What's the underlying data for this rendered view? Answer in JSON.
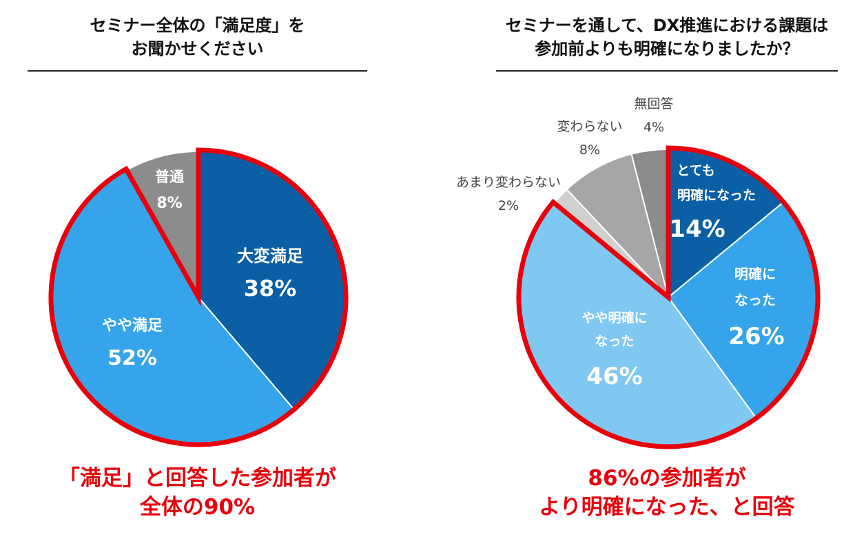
{
  "colors": {
    "very_dark_blue": "#0b5fa5",
    "mid_blue": "#35a4ea",
    "light_blue": "#7fc8f2",
    "gray_dark": "#8c8c8c",
    "gray_mid": "#a6a6a6",
    "gray_light": "#d0d0d0",
    "highlight_red": "#e8000b"
  },
  "chart_data": [
    {
      "type": "pie",
      "title": [
        "セミナー全体の「満足度」を",
        "お聞かせください"
      ],
      "categories": [
        "大変満足",
        "やや満足",
        "普通"
      ],
      "values": [
        38,
        52,
        8
      ],
      "value_labels": [
        "38%",
        "52%",
        "8%"
      ],
      "highlighted": [
        "大変満足",
        "やや満足"
      ],
      "conclusion": [
        "「満足」と回答した参加者が",
        "全体の90%"
      ]
    },
    {
      "type": "pie",
      "title": [
        "セミナーを通して、DX推進における課題は",
        "参加前よりも明確になりましたか？"
      ],
      "categories": [
        "とても明確になった",
        "明確になった",
        "やや明確になった",
        "あまり変わらない",
        "変わらない",
        "無回答"
      ],
      "label_lines": [
        [
          "とても",
          "明確になった"
        ],
        [
          "明確に",
          "なった"
        ],
        [
          "やや明確に",
          "なった"
        ],
        [
          "あまり変わらない"
        ],
        [
          "変わらない"
        ],
        [
          "無回答"
        ]
      ],
      "values": [
        14,
        26,
        46,
        2,
        8,
        4
      ],
      "value_labels": [
        "14%",
        "26%",
        "46%",
        "2%",
        "8%",
        "4%"
      ],
      "highlighted": [
        "とても明確になった",
        "明確になった",
        "やや明確になった"
      ],
      "conclusion": [
        "86%の参加者が",
        "より明確になった、と回答"
      ]
    }
  ]
}
